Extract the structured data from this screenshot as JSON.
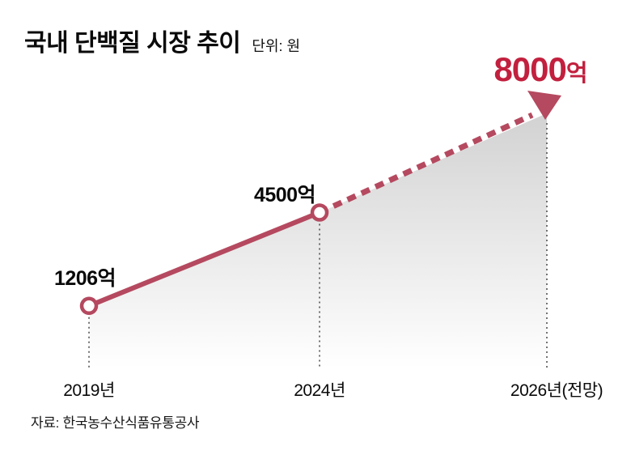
{
  "header": {
    "title": "국내 단백질 시장 추이",
    "unit": "단위: 원"
  },
  "source": "자료: 한국농수산식품유통공사",
  "colors": {
    "line": "#b5495f",
    "highlight": "#c2203e",
    "area_top": "#d2d2d2",
    "area_bottom": "#ffffff",
    "guide": "#3a3a3a"
  },
  "chart_data": {
    "type": "line",
    "title": "국내 단백질 시장 추이",
    "unit": "단위: 원",
    "categories": [
      "2019년",
      "2024년",
      "2026년(전망)"
    ],
    "values": [
      1206,
      4500,
      8000
    ],
    "value_labels": [
      "1206억",
      "4500억",
      "8000억"
    ],
    "highlight": {
      "number": "8000",
      "suffix": "억"
    },
    "forecast": {
      "from": "2024년",
      "to": "2026년(전망)",
      "style": "dashed-arrow"
    },
    "ylim": [
      0,
      8000
    ],
    "grid": false,
    "legend": false,
    "source": "자료: 한국농수산식품유통공사"
  }
}
